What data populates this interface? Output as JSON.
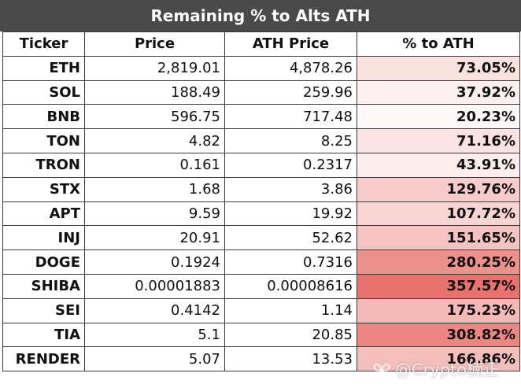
{
  "chart_data": {
    "type": "table",
    "title": "Remaining % to Alts ATH",
    "columns": [
      "Ticker",
      "Price",
      "ATH Price",
      "% to ATH"
    ],
    "rows": [
      {
        "ticker": "ETH",
        "price": "2,819.01",
        "ath": "4,878.26",
        "pct": "73.05%",
        "value": 73.05
      },
      {
        "ticker": "SOL",
        "price": "188.49",
        "ath": "259.96",
        "pct": "37.92%",
        "value": 37.92
      },
      {
        "ticker": "BNB",
        "price": "596.75",
        "ath": "717.48",
        "pct": "20.23%",
        "value": 20.23
      },
      {
        "ticker": "TON",
        "price": "4.82",
        "ath": "8.25",
        "pct": "71.16%",
        "value": 71.16
      },
      {
        "ticker": "TRON",
        "price": "0.161",
        "ath": "0.2317",
        "pct": "43.91%",
        "value": 43.91
      },
      {
        "ticker": "STX",
        "price": "1.68",
        "ath": "3.86",
        "pct": "129.76%",
        "value": 129.76
      },
      {
        "ticker": "APT",
        "price": "9.59",
        "ath": "19.92",
        "pct": "107.72%",
        "value": 107.72
      },
      {
        "ticker": "INJ",
        "price": "20.91",
        "ath": "52.62",
        "pct": "151.65%",
        "value": 151.65
      },
      {
        "ticker": "DOGE",
        "price": "0.1924",
        "ath": "0.7316",
        "pct": "280.25%",
        "value": 280.25
      },
      {
        "ticker": "SHIBA",
        "price": "0.00001883",
        "ath": "0.00008616",
        "pct": "357.57%",
        "value": 357.57
      },
      {
        "ticker": "SEI",
        "price": "0.4142",
        "ath": "1.14",
        "pct": "175.23%",
        "value": 175.23
      },
      {
        "ticker": "TIA",
        "price": "5.1",
        "ath": "20.85",
        "pct": "308.82%",
        "value": 308.82
      },
      {
        "ticker": "RENDER",
        "price": "5.07",
        "ath": "13.53",
        "pct": "166.86%",
        "value": 166.86
      }
    ],
    "heat_color_low": "#ffffff",
    "heat_color_high": "#e8736e",
    "heat_range": [
      0,
      357.57
    ]
  },
  "watermark": {
    "text": "@Crypto楠正",
    "icon": "butterfly-logo-icon"
  }
}
